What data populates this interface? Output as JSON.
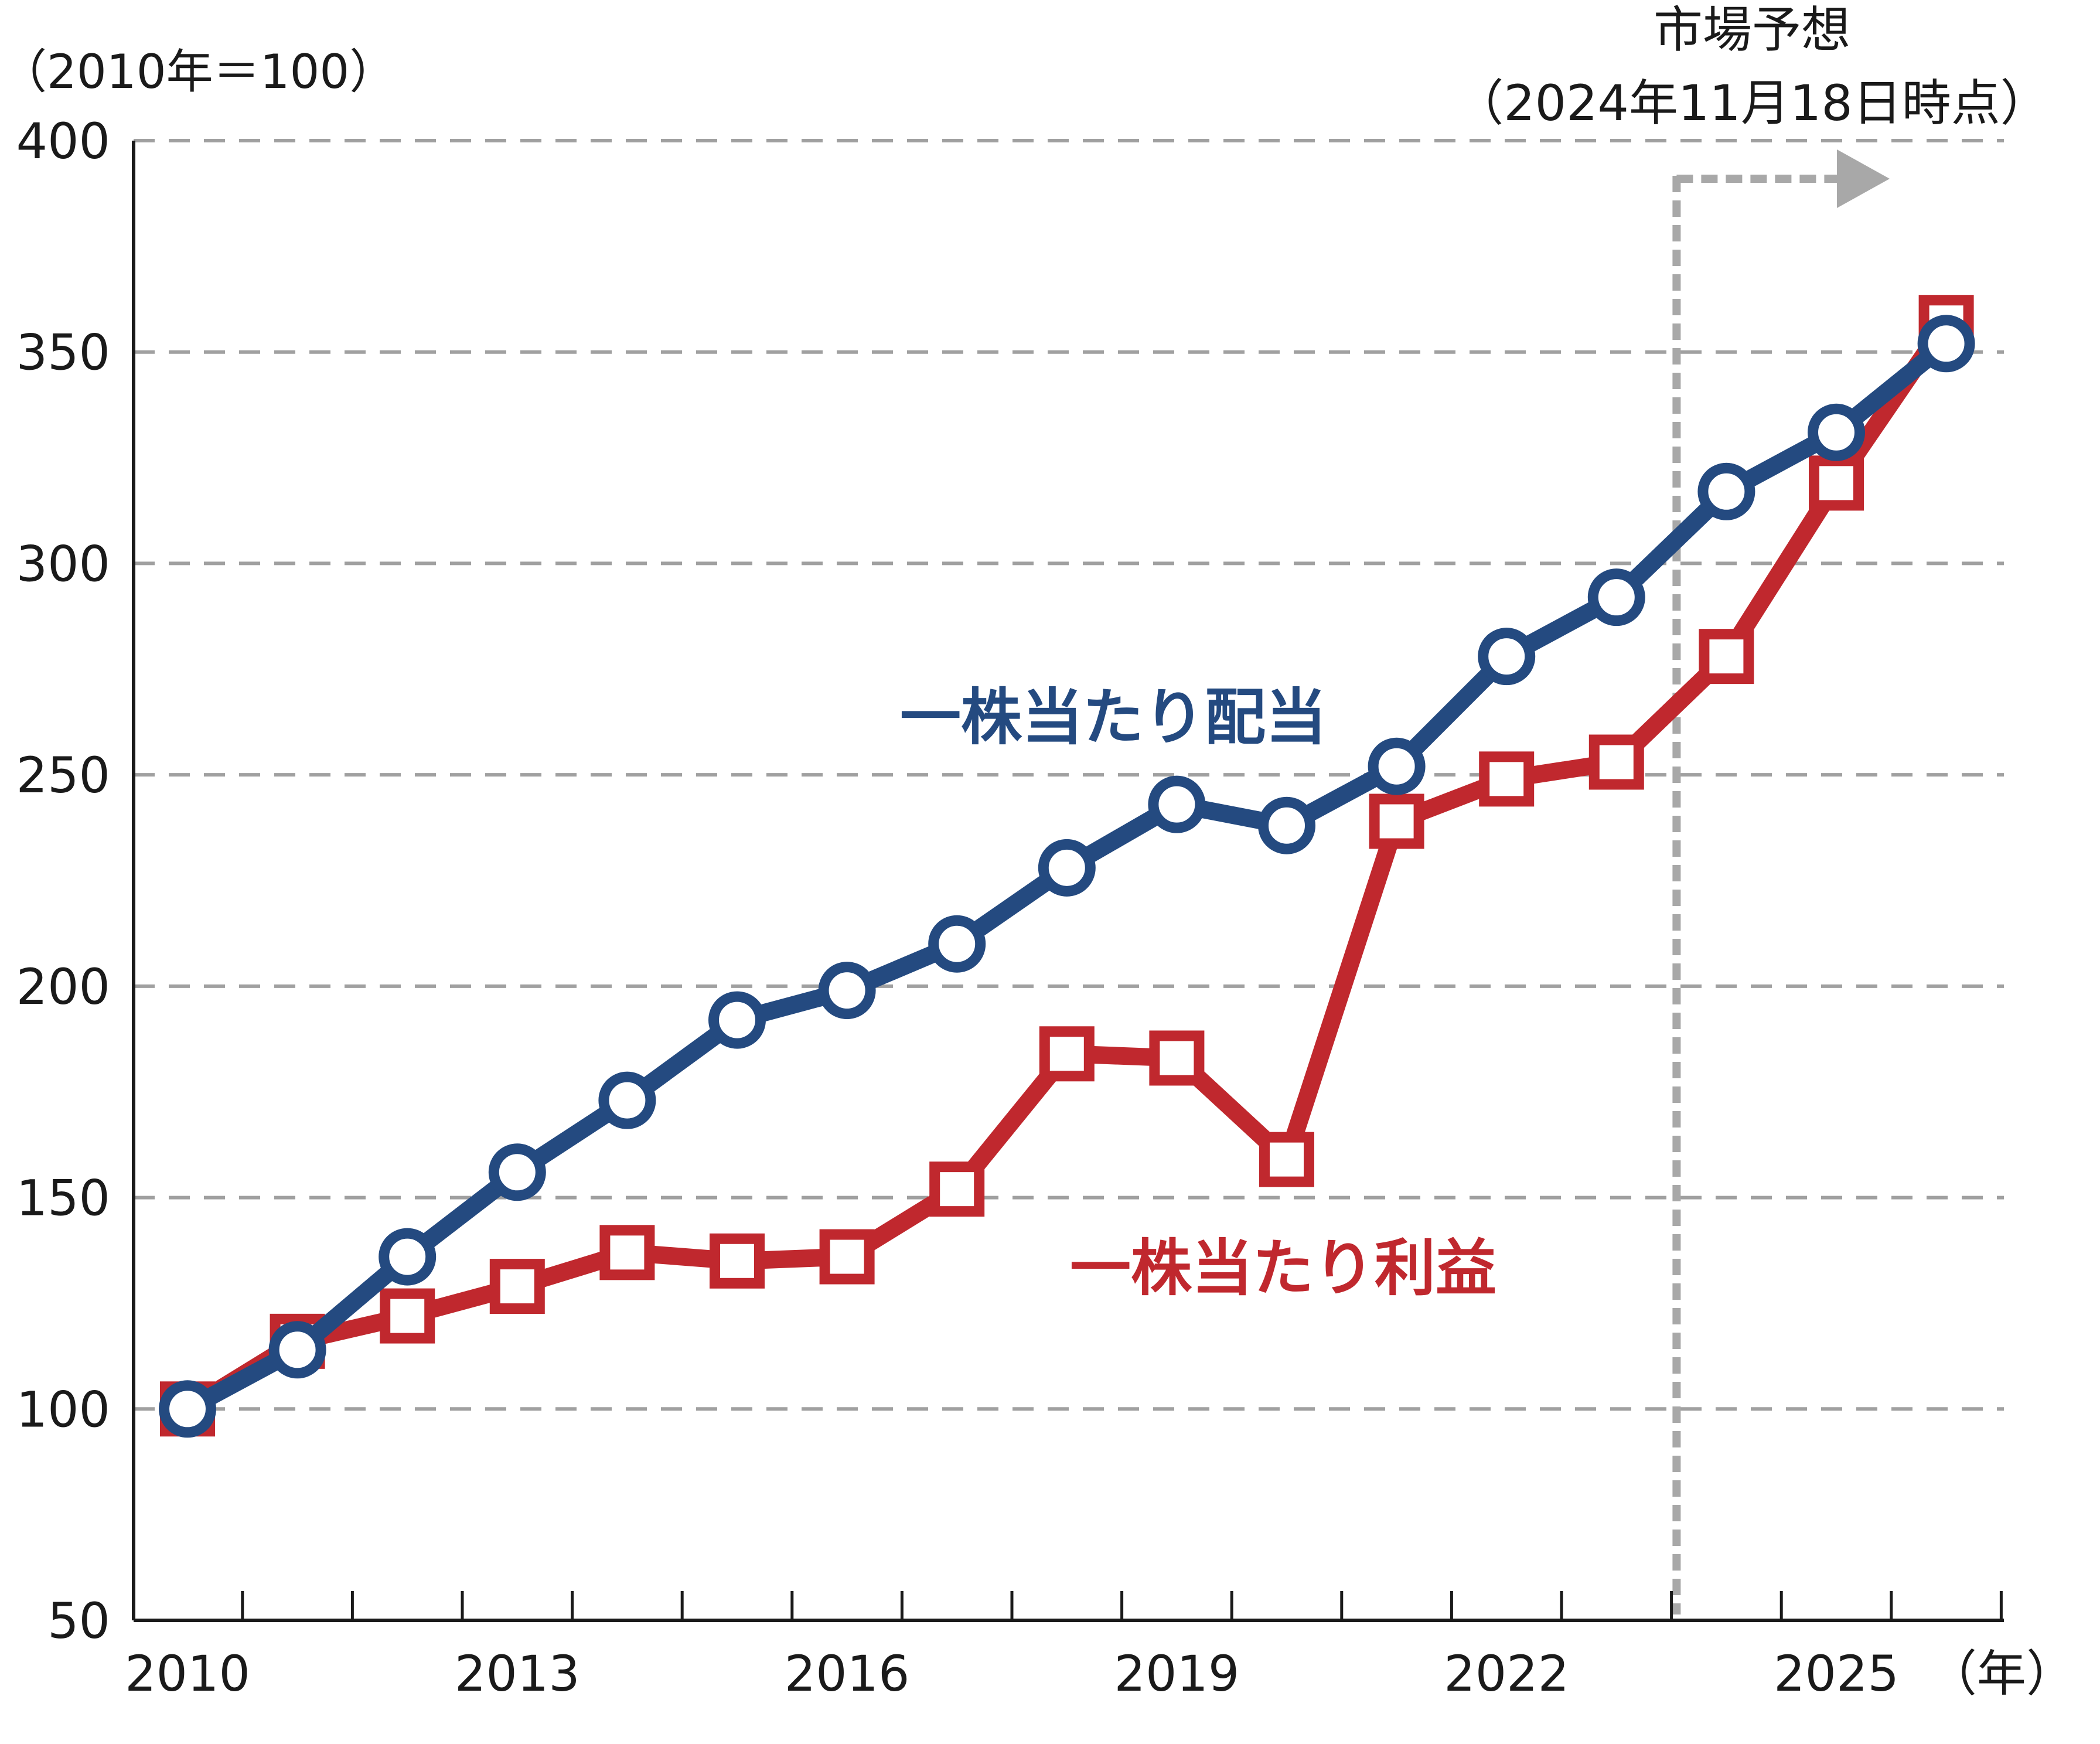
{
  "chart_data": {
    "type": "line",
    "y_unit_label": "（2010年＝100）",
    "x_unit_label": "（年）",
    "ylim": [
      50,
      400
    ],
    "yticks": [
      400,
      350,
      300,
      250,
      200,
      150,
      100,
      50
    ],
    "xlim": [
      2010,
      2026
    ],
    "xticks_labeled": [
      2010,
      2013,
      2016,
      2019,
      2022,
      2025
    ],
    "grid": "horizontal dashed",
    "x": [
      2010,
      2011,
      2012,
      2013,
      2014,
      2015,
      2016,
      2017,
      2018,
      2019,
      2020,
      2021,
      2022,
      2023,
      2024,
      2025,
      2026
    ],
    "series": [
      {
        "name": "一株当たり配当",
        "color": "#244a80",
        "marker": "circle",
        "values": [
          100,
          114,
          136,
          156,
          173,
          192,
          199,
          210,
          228,
          243,
          238,
          252,
          278,
          292,
          317,
          331,
          352
        ]
      },
      {
        "name": "一株当たり利益",
        "color": "#c0282e",
        "marker": "square",
        "values": [
          100,
          116,
          122,
          129,
          137,
          135,
          136,
          152,
          184,
          183,
          159,
          239,
          249,
          253,
          278,
          319,
          357
        ]
      }
    ],
    "forecast": {
      "label_line1": "市場予想",
      "label_line2": "（2024年11月18日時点）",
      "start_x": 2024
    },
    "colors": {
      "grid": "#a0a0a0",
      "forecast_line": "#a8a8a8",
      "axis": "#1a1a1a"
    }
  }
}
